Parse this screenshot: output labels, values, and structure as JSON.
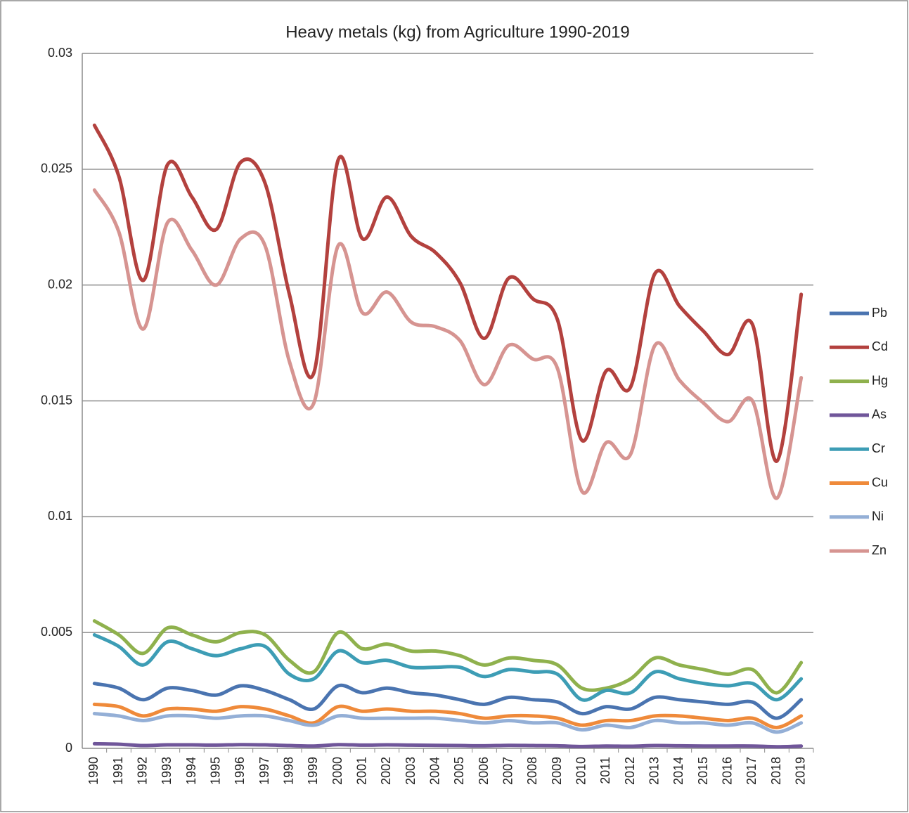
{
  "chart_data": {
    "type": "line",
    "title": "Heavy metals (kg) from Agriculture 1990-2019",
    "categories": [
      "1990",
      "1991",
      "1992",
      "1993",
      "1994",
      "1995",
      "1996",
      "1997",
      "1998",
      "1999",
      "2000",
      "2001",
      "2002",
      "2003",
      "2004",
      "2005",
      "2006",
      "2007",
      "2008",
      "2009",
      "2010",
      "2011",
      "2012",
      "2013",
      "2014",
      "2015",
      "2016",
      "2017",
      "2018",
      "2019"
    ],
    "ylim": [
      0,
      0.03
    ],
    "yticks": [
      0,
      0.005,
      0.01,
      0.015,
      0.02,
      0.025,
      0.03
    ],
    "grid": true,
    "legend": "right",
    "series": [
      {
        "name": "Pb",
        "color": "#4a74b0",
        "values": [
          0.0028,
          0.0026,
          0.0021,
          0.0026,
          0.0025,
          0.0023,
          0.0027,
          0.0025,
          0.0021,
          0.0017,
          0.0027,
          0.0024,
          0.0026,
          0.0024,
          0.0023,
          0.0021,
          0.0019,
          0.0022,
          0.0021,
          0.002,
          0.0015,
          0.0018,
          0.0017,
          0.0022,
          0.0021,
          0.002,
          0.0019,
          0.002,
          0.0013,
          0.0021
        ]
      },
      {
        "name": "Cd",
        "color": "#b3413e",
        "values": [
          0.0269,
          0.0247,
          0.0202,
          0.0252,
          0.0238,
          0.0224,
          0.0253,
          0.0244,
          0.0196,
          0.0162,
          0.0254,
          0.022,
          0.0238,
          0.0221,
          0.0214,
          0.0201,
          0.0177,
          0.0203,
          0.0194,
          0.0185,
          0.0133,
          0.0163,
          0.0156,
          0.0205,
          0.0191,
          0.018,
          0.017,
          0.0183,
          0.0124,
          0.0196
        ]
      },
      {
        "name": "Hg",
        "color": "#8fb14d",
        "values": [
          0.0055,
          0.0049,
          0.0041,
          0.0052,
          0.0049,
          0.0046,
          0.005,
          0.0049,
          0.0038,
          0.0033,
          0.005,
          0.0043,
          0.0045,
          0.0042,
          0.0042,
          0.004,
          0.0036,
          0.0039,
          0.0038,
          0.0036,
          0.0026,
          0.0026,
          0.003,
          0.0039,
          0.0036,
          0.0034,
          0.0032,
          0.0034,
          0.0024,
          0.0037
        ]
      },
      {
        "name": "As",
        "color": "#70569a",
        "values": [
          0.0002,
          0.00018,
          0.00012,
          0.00015,
          0.00015,
          0.00014,
          0.00016,
          0.00015,
          0.00012,
          0.0001,
          0.00016,
          0.00014,
          0.00015,
          0.00014,
          0.00013,
          0.00012,
          0.00011,
          0.00013,
          0.00012,
          0.00011,
          8e-05,
          0.0001,
          9e-05,
          0.00012,
          0.00011,
          0.0001,
          0.0001,
          0.0001,
          7e-05,
          0.0001
        ]
      },
      {
        "name": "Cr",
        "color": "#3d9db5",
        "values": [
          0.0049,
          0.0044,
          0.0036,
          0.0046,
          0.0043,
          0.004,
          0.0043,
          0.0044,
          0.0032,
          0.003,
          0.0042,
          0.0037,
          0.0038,
          0.0035,
          0.0035,
          0.0035,
          0.0031,
          0.0034,
          0.0033,
          0.0032,
          0.0021,
          0.0025,
          0.0024,
          0.0033,
          0.003,
          0.0028,
          0.0027,
          0.0028,
          0.0021,
          0.003
        ]
      },
      {
        "name": "Cu",
        "color": "#ef8a3a",
        "values": [
          0.0019,
          0.0018,
          0.0014,
          0.0017,
          0.0017,
          0.0016,
          0.0018,
          0.0017,
          0.0014,
          0.0011,
          0.0018,
          0.0016,
          0.0017,
          0.0016,
          0.0016,
          0.0015,
          0.0013,
          0.0014,
          0.0014,
          0.0013,
          0.001,
          0.0012,
          0.0012,
          0.0014,
          0.0014,
          0.0013,
          0.0012,
          0.0013,
          0.0009,
          0.0014
        ]
      },
      {
        "name": "Ni",
        "color": "#94afd6",
        "values": [
          0.0015,
          0.0014,
          0.0012,
          0.0014,
          0.0014,
          0.0013,
          0.0014,
          0.0014,
          0.0012,
          0.001,
          0.0014,
          0.0013,
          0.0013,
          0.0013,
          0.0013,
          0.0012,
          0.0011,
          0.0012,
          0.0011,
          0.0011,
          0.0008,
          0.001,
          0.0009,
          0.0012,
          0.0011,
          0.0011,
          0.001,
          0.0011,
          0.0007,
          0.0011
        ]
      },
      {
        "name": "Zn",
        "color": "#d69491",
        "values": [
          0.0241,
          0.0223,
          0.0181,
          0.0227,
          0.0215,
          0.02,
          0.022,
          0.0217,
          0.0167,
          0.0149,
          0.0217,
          0.0188,
          0.0197,
          0.0184,
          0.0182,
          0.0176,
          0.0157,
          0.0174,
          0.0168,
          0.0164,
          0.0111,
          0.0132,
          0.0127,
          0.0174,
          0.0159,
          0.0149,
          0.0141,
          0.015,
          0.0108,
          0.016
        ]
      }
    ]
  }
}
